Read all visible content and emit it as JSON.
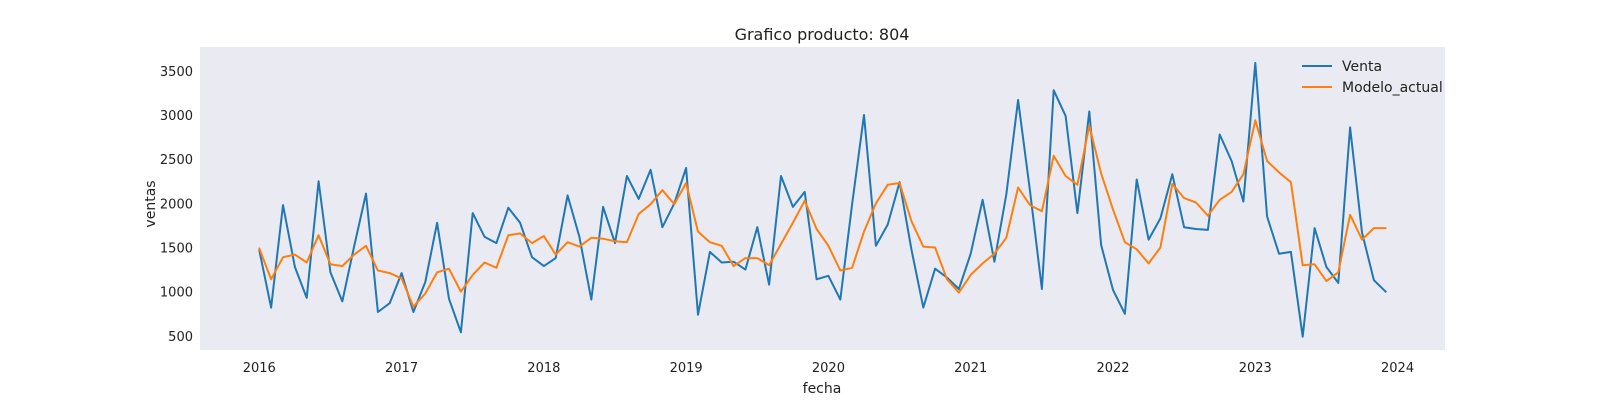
{
  "chart_data": {
    "type": "line",
    "title": "Grafico producto: 804",
    "xlabel": "fecha",
    "ylabel": "ventas",
    "x_start": "2016-01",
    "x_interval": "month",
    "xticks": [
      "2016",
      "2017",
      "2018",
      "2019",
      "2020",
      "2021",
      "2022",
      "2023",
      "2024"
    ],
    "yticks": [
      500,
      1000,
      1500,
      2000,
      2500,
      3000,
      3500
    ],
    "ylim": [
      340,
      3770
    ],
    "xlim": [
      "2015-08",
      "2024-05"
    ],
    "grid": false,
    "legend_position": "top-right",
    "colors": {
      "background": "#eaeaf2",
      "Venta": "#1f77b4",
      "Modelo_actual": "#ff7f0e"
    },
    "series": [
      {
        "name": "Venta",
        "values": [
          1470,
          820,
          1980,
          1280,
          930,
          2250,
          1220,
          890,
          1510,
          2110,
          770,
          870,
          1210,
          770,
          1110,
          1780,
          920,
          540,
          1890,
          1620,
          1550,
          1950,
          1780,
          1390,
          1290,
          1380,
          2090,
          1620,
          910,
          1960,
          1550,
          2310,
          2050,
          2380,
          1730,
          2000,
          2400,
          740,
          1450,
          1330,
          1340,
          1250,
          1730,
          1080,
          2310,
          1960,
          2130,
          1140,
          1180,
          910,
          1990,
          3000,
          1520,
          1760,
          2240,
          1480,
          820,
          1260,
          1160,
          1030,
          1430,
          2040,
          1340,
          2100,
          3170,
          2140,
          1030,
          3280,
          2990,
          1890,
          3040,
          1530,
          1020,
          750,
          2270,
          1590,
          1830,
          2330,
          1730,
          1710,
          1700,
          2780,
          2480,
          2020,
          3590,
          1850,
          1430,
          1450,
          490,
          1720,
          1280,
          1100,
          2860,
          1670,
          1130,
          1000
        ]
      },
      {
        "name": "Modelo_actual",
        "values": [
          1490,
          1140,
          1390,
          1420,
          1330,
          1640,
          1310,
          1290,
          1420,
          1520,
          1240,
          1210,
          1150,
          830,
          980,
          1220,
          1260,
          1000,
          1190,
          1330,
          1270,
          1640,
          1660,
          1550,
          1630,
          1420,
          1560,
          1510,
          1610,
          1600,
          1570,
          1560,
          1880,
          1990,
          2150,
          1990,
          2230,
          1680,
          1560,
          1520,
          1290,
          1380,
          1380,
          1300,
          1540,
          1780,
          2030,
          1710,
          1520,
          1240,
          1270,
          1680,
          2000,
          2210,
          2230,
          1800,
          1510,
          1500,
          1140,
          990,
          1190,
          1320,
          1430,
          1610,
          2180,
          1980,
          1910,
          2540,
          2310,
          2210,
          2880,
          2340,
          1930,
          1560,
          1480,
          1320,
          1500,
          2220,
          2060,
          2010,
          1860,
          2040,
          2130,
          2330,
          2940,
          2480,
          2350,
          2240,
          1300,
          1310,
          1120,
          1220,
          1870,
          1590,
          1720,
          1720
        ]
      }
    ]
  }
}
